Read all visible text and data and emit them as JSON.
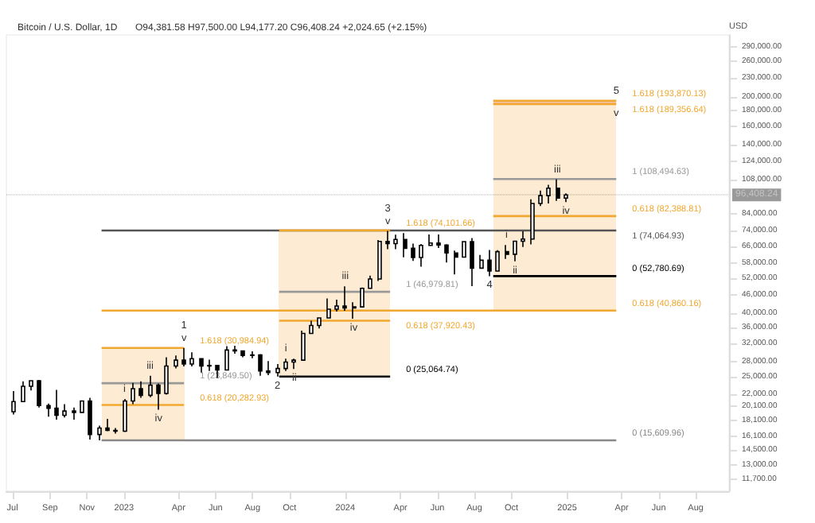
{
  "chart_data": {
    "type": "candlestick",
    "title": "Bitcoin / U.S. Dollar, 1D",
    "subtitle": "O94,381.58 H97,500.00 L94,177.20 C96,408.24 +2,024.65 (+2.15%)",
    "ylabel": "USD",
    "color": "#000000",
    "log": true,
    "x": [
      "2022-07-04",
      "2022-07-18",
      "2022-08-01",
      "2022-08-15",
      "2022-08-29",
      "2022-09-12",
      "2022-09-26",
      "2022-10-10",
      "2022-10-24",
      "2022-11-07",
      "2022-11-21",
      "2022-12-05",
      "2022-12-19",
      "2023-01-02",
      "2023-01-16",
      "2023-01-30",
      "2023-02-13",
      "2023-02-27",
      "2023-03-13",
      "2023-03-27",
      "2023-04-10",
      "2023-04-24",
      "2023-05-08",
      "2023-05-22",
      "2023-06-05",
      "2023-06-19",
      "2023-07-03",
      "2023-07-17",
      "2023-07-31",
      "2023-08-14",
      "2023-08-28",
      "2023-09-11",
      "2023-09-25",
      "2023-10-09",
      "2023-10-23",
      "2023-11-06",
      "2023-11-20",
      "2023-12-04",
      "2023-12-18",
      "2024-01-01",
      "2024-01-15",
      "2024-01-29",
      "2024-02-12",
      "2024-02-26",
      "2024-03-11",
      "2024-03-25",
      "2024-04-08",
      "2024-04-22",
      "2024-05-06",
      "2024-05-20",
      "2024-06-03",
      "2024-06-17",
      "2024-07-01",
      "2024-07-15",
      "2024-07-29",
      "2024-08-12",
      "2024-08-26",
      "2024-09-09",
      "2024-09-23",
      "2024-10-07",
      "2024-10-21",
      "2024-11-04",
      "2024-11-18",
      "2024-12-02",
      "2024-12-16",
      "2024-12-30"
    ],
    "ohlc": [
      [
        19300,
        22500,
        18900,
        20800
      ],
      [
        20800,
        24200,
        20700,
        23300
      ],
      [
        23300,
        24400,
        22600,
        24300
      ],
      [
        24300,
        24450,
        19900,
        20200
      ],
      [
        20200,
        20500,
        18600,
        19800
      ],
      [
        19800,
        22700,
        18200,
        18800
      ],
      [
        18800,
        20400,
        18500,
        19400
      ],
      [
        19400,
        19900,
        18200,
        19200
      ],
      [
        19200,
        21000,
        19100,
        20900
      ],
      [
        20900,
        21400,
        15700,
        16300
      ],
      [
        16300,
        17400,
        15610,
        17100
      ],
      [
        17100,
        18300,
        16700,
        16800
      ],
      [
        16800,
        17100,
        16400,
        16700
      ],
      [
        16700,
        21200,
        16600,
        20900
      ],
      [
        20900,
        23900,
        20400,
        22900
      ],
      [
        22900,
        24200,
        21400,
        21800
      ],
      [
        21800,
        25200,
        21500,
        23500
      ],
      [
        23500,
        23800,
        19600,
        22100
      ],
      [
        22100,
        28900,
        21900,
        27100
      ],
      [
        27100,
        29300,
        26600,
        28300
      ],
      [
        28300,
        31000,
        27000,
        27500
      ],
      [
        27500,
        30000,
        27000,
        28600
      ],
      [
        28600,
        28600,
        25800,
        27100
      ],
      [
        27100,
        28400,
        26100,
        27200
      ],
      [
        27200,
        27200,
        24800,
        26300
      ],
      [
        26300,
        31400,
        26200,
        30500
      ],
      [
        30500,
        31500,
        29700,
        30300
      ],
      [
        30300,
        30400,
        28900,
        29300
      ],
      [
        29300,
        30200,
        28700,
        29400
      ],
      [
        29400,
        29600,
        25200,
        26100
      ],
      [
        26100,
        28100,
        25300,
        25800
      ],
      [
        25800,
        27500,
        25070,
        26600
      ],
      [
        26600,
        28600,
        26100,
        27900
      ],
      [
        27900,
        28600,
        26500,
        28300
      ],
      [
        28300,
        35200,
        28300,
        34500
      ],
      [
        34500,
        37900,
        34400,
        36600
      ],
      [
        36600,
        38900,
        35800,
        38700
      ],
      [
        38700,
        44700,
        38600,
        41300
      ],
      [
        41300,
        44300,
        40600,
        42300
      ],
      [
        42300,
        48900,
        40800,
        41700
      ],
      [
        41700,
        43500,
        38500,
        42000
      ],
      [
        42000,
        48500,
        41800,
        48200
      ],
      [
        48200,
        53000,
        48100,
        51700
      ],
      [
        51700,
        69000,
        50900,
        68300
      ],
      [
        68300,
        73800,
        64500,
        67200
      ],
      [
        67200,
        71800,
        64500,
        69300
      ],
      [
        69300,
        72700,
        60700,
        64900
      ],
      [
        64900,
        67200,
        59100,
        60600
      ],
      [
        60600,
        67000,
        56600,
        66300
      ],
      [
        66300,
        71900,
        66300,
        67500
      ],
      [
        67500,
        71900,
        65000,
        66500
      ],
      [
        66500,
        66900,
        58400,
        62700
      ],
      [
        62700,
        63800,
        53500,
        60800
      ],
      [
        60800,
        68400,
        60600,
        68200
      ],
      [
        68200,
        70000,
        49000,
        56000
      ],
      [
        56000,
        61800,
        55700,
        59400
      ],
      [
        59400,
        64100,
        52790,
        54800
      ],
      [
        54800,
        64000,
        54600,
        63300
      ],
      [
        63300,
        66500,
        60000,
        62100
      ],
      [
        62100,
        68400,
        58900,
        68400
      ],
      [
        68400,
        73600,
        65500,
        69500
      ],
      [
        69500,
        93400,
        66800,
        90500
      ],
      [
        90500,
        99600,
        88800,
        95900
      ],
      [
        95900,
        104000,
        90500,
        101400
      ],
      [
        101400,
        108300,
        92200,
        94200
      ],
      [
        94200,
        97500,
        91400,
        96408.24
      ]
    ],
    "series": [
      {
        "type": "line",
        "name": "0 (15,609.96)",
        "color": "#888888",
        "x": [
          "2022-11-25",
          "2025-03-23"
        ],
        "values": [
          15609.96,
          15609.96
        ]
      },
      {
        "type": "line",
        "name": "1.618 (30,984.94)",
        "color": "#f0a830",
        "x": [
          "2022-11-25",
          "2023-04-10"
        ],
        "values": [
          30984.94,
          30984.94
        ]
      },
      {
        "type": "line",
        "name": "1 (23,849.50)",
        "color": "#999999",
        "x": [
          "2022-11-25",
          "2023-04-10"
        ],
        "values": [
          23849.5,
          23849.5
        ]
      },
      {
        "type": "line",
        "name": "0.618 (20,282.93)",
        "color": "#f0a830",
        "x": [
          "2022-11-25",
          "2023-04-10"
        ],
        "values": [
          20282.93,
          20282.93
        ]
      },
      {
        "type": "line",
        "name": "0 (25,064.74)",
        "color": "#000000",
        "x": [
          "2023-09-14",
          "2024-03-15"
        ],
        "values": [
          25064.74,
          25064.74
        ]
      },
      {
        "type": "line",
        "name": "0.618 (37,920.43)",
        "color": "#f0a830",
        "x": [
          "2023-09-14",
          "2024-03-15"
        ],
        "values": [
          37920.43,
          37920.43
        ]
      },
      {
        "type": "line",
        "name": "1 (46,979.81)",
        "color": "#999999",
        "x": [
          "2023-09-14",
          "2024-03-15"
        ],
        "values": [
          46979.81,
          46979.81
        ]
      },
      {
        "type": "line",
        "name": "1.618 (74,101.66)",
        "color": "#f0a830",
        "x": [
          "2023-09-14",
          "2024-03-15"
        ],
        "values": [
          74101.66,
          74101.66
        ]
      },
      {
        "type": "line",
        "name": "0.618 (40,860.16)",
        "color": "#f0a830",
        "x": [
          "2022-11-25",
          "2025-03-23"
        ],
        "values": [
          40860.16,
          40860.16
        ]
      },
      {
        "type": "line",
        "name": "1 (74,064.93)",
        "color": "#555555",
        "x": [
          "2022-11-25",
          "2025-03-23"
        ],
        "values": [
          74064.93,
          74064.93
        ]
      },
      {
        "type": "line",
        "name": "0 (52,780.69)",
        "color": "#000000",
        "x": [
          "2024-09-01",
          "2025-03-23"
        ],
        "values": [
          52780.69,
          52780.69
        ]
      },
      {
        "type": "line",
        "name": "0.618 (82,388.81)",
        "color": "#f0a830",
        "x": [
          "2024-09-01",
          "2025-03-23"
        ],
        "values": [
          82388.81,
          82388.81
        ]
      },
      {
        "type": "line",
        "name": "1 (108,494.63)",
        "color": "#999999",
        "x": [
          "2024-09-01",
          "2025-03-23"
        ],
        "values": [
          108494.63,
          108494.63
        ]
      },
      {
        "type": "line",
        "name": "1.618 (189,356.64)",
        "color": "#f0a830",
        "x": [
          "2024-09-01",
          "2025-03-23"
        ],
        "values": [
          189356.64,
          189356.64
        ]
      },
      {
        "type": "line",
        "name": "1.618 (193,870.13)",
        "color": "#f0a830",
        "x": [
          "2024-09-01",
          "2025-03-23"
        ],
        "values": [
          193870.13,
          193870.13
        ]
      }
    ],
    "annotations": [
      {
        "text": "v",
        "x": "2023-04-10",
        "y": 31000
      },
      {
        "text": "1",
        "x": "2023-04-10",
        "y": 31000
      },
      {
        "text": "2",
        "x": "2023-09-11",
        "y": 25070
      },
      {
        "text": "v",
        "x": "2024-03-11",
        "y": 73800
      },
      {
        "text": "3",
        "x": "2024-03-11",
        "y": 73800
      },
      {
        "text": "4",
        "x": "2024-08-26",
        "y": 52790
      },
      {
        "text": "5",
        "x": "2025-03-23",
        "y": 193870.13
      },
      {
        "text": "v",
        "x": "2025-03-23",
        "y": 189356.64
      },
      {
        "text": "i",
        "x": "2023-01-02",
        "y": 21200
      },
      {
        "text": "iii",
        "x": "2023-02-13",
        "y": 25200
      },
      {
        "text": "iv",
        "x": "2023-02-27",
        "y": 19600
      },
      {
        "text": "i",
        "x": "2023-09-25",
        "y": 28600
      },
      {
        "text": "ii",
        "x": "2023-10-09",
        "y": 26500
      },
      {
        "text": "iii",
        "x": "2024-01-01",
        "y": 48900
      },
      {
        "text": "iv",
        "x": "2024-01-15",
        "y": 38500
      },
      {
        "text": "i",
        "x": "2024-09-23",
        "y": 66500
      },
      {
        "text": "ii",
        "x": "2024-10-07",
        "y": 58900
      },
      {
        "text": "iii",
        "x": "2024-12-16",
        "y": 108300
      },
      {
        "text": "iv",
        "x": "2024-12-30",
        "y": 91400
      }
    ],
    "ref_lines": [
      {
        "axis": "y",
        "value": 96408.24,
        "label": "96,408.24"
      }
    ],
    "xlim": [
      "2022-06-21",
      "2025-09-25"
    ],
    "xticks": [
      {
        "value": "2022-07-01",
        "label": "Jul"
      },
      {
        "value": "2022-09-01",
        "label": "Sep"
      },
      {
        "value": "2022-11-01",
        "label": "Nov"
      },
      {
        "value": "2023-01-01",
        "label": "2023"
      },
      {
        "value": "2023-04-01",
        "label": "Apr"
      },
      {
        "value": "2023-06-01",
        "label": "Jun"
      },
      {
        "value": "2023-08-01",
        "label": "Aug"
      },
      {
        "value": "2023-10-01",
        "label": "Oct"
      },
      {
        "value": "2024-01-01",
        "label": "2024"
      },
      {
        "value": "2024-04-01",
        "label": "Apr"
      },
      {
        "value": "2024-06-01",
        "label": "Jun"
      },
      {
        "value": "2024-08-01",
        "label": "Aug"
      },
      {
        "value": "2024-10-01",
        "label": "Oct"
      },
      {
        "value": "2025-01-01",
        "label": "2025"
      },
      {
        "value": "2025-04-01",
        "label": "Apr"
      },
      {
        "value": "2025-06-01",
        "label": "Jun"
      },
      {
        "value": "2025-08-01",
        "label": "Aug"
      }
    ],
    "ylim": [
      10700,
      316000
    ],
    "yticks": [
      {
        "value": 11700,
        "label": "11,700.00"
      },
      {
        "value": 13000,
        "label": "13,000.00"
      },
      {
        "value": 14500,
        "label": "14,500.00"
      },
      {
        "value": 16100,
        "label": "16,100.00"
      },
      {
        "value": 18100,
        "label": "18,100.00"
      },
      {
        "value": 20100,
        "label": "20,100.00"
      },
      {
        "value": 22000,
        "label": "22,000.00"
      },
      {
        "value": 25000,
        "label": "25,000.00"
      },
      {
        "value": 28000,
        "label": "28,000.00"
      },
      {
        "value": 32000,
        "label": "32,000.00"
      },
      {
        "value": 36000,
        "label": "36,000.00"
      },
      {
        "value": 40000,
        "label": "40,000.00"
      },
      {
        "value": 46000,
        "label": "46,000.00"
      },
      {
        "value": 52000,
        "label": "52,000.00"
      },
      {
        "value": 58000,
        "label": "58,000.00"
      },
      {
        "value": 66000,
        "label": "66,000.00"
      },
      {
        "value": 74000,
        "label": "74,000.00"
      },
      {
        "value": 84000,
        "label": "84,000.00"
      },
      {
        "value": 108000,
        "label": "108,000.00"
      },
      {
        "value": 124000,
        "label": "124,000.00"
      },
      {
        "value": 140000,
        "label": "140,000.00"
      },
      {
        "value": 160000,
        "label": "160,000.00"
      },
      {
        "value": 180000,
        "label": "180,000.00"
      },
      {
        "value": 200000,
        "label": "200,000.00"
      },
      {
        "value": 230000,
        "label": "230,000.00"
      },
      {
        "value": 260000,
        "label": "260,000.00"
      },
      {
        "value": 290000,
        "label": "290,000.00"
      }
    ]
  }
}
